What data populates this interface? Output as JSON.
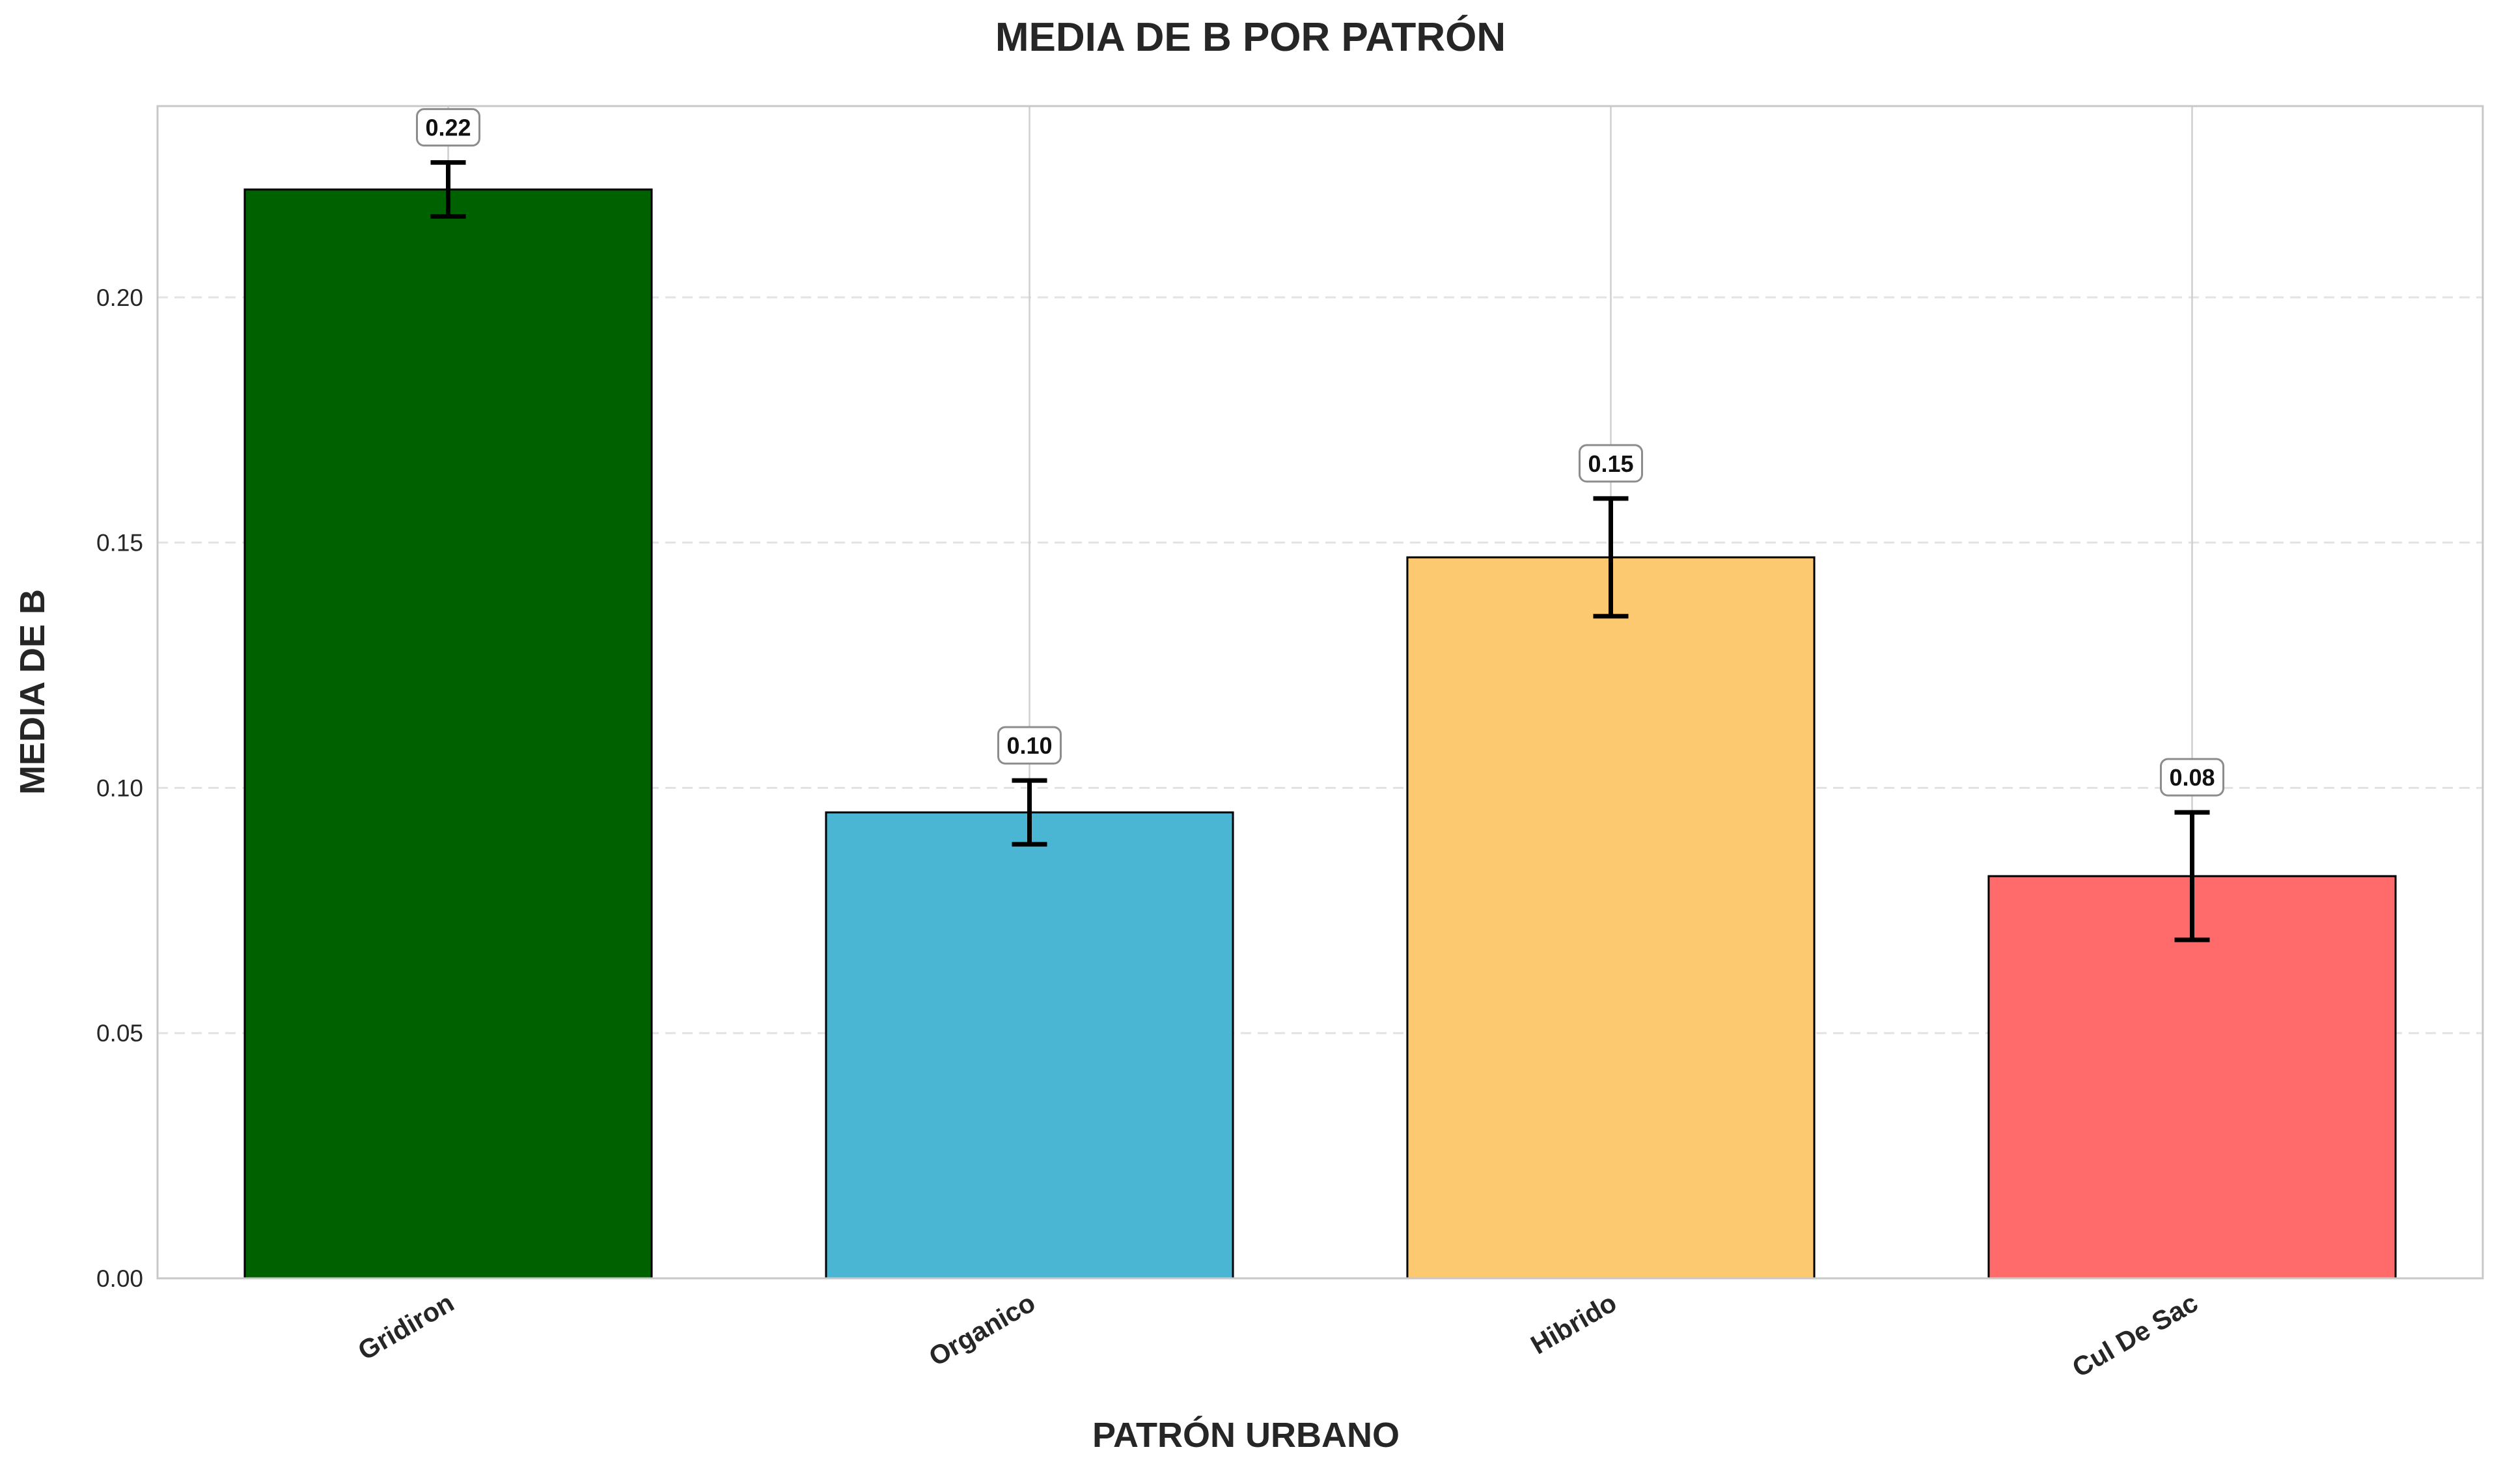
{
  "chart_data": {
    "type": "bar",
    "title": "MEDIA DE B POR PATRÓN",
    "xlabel": "PATRÓN URBANO",
    "ylabel": "MEDIA DE B",
    "categories": [
      "Gridiron",
      "Organico",
      "Hibrido",
      "Cul De Sac"
    ],
    "values": [
      0.222,
      0.095,
      0.147,
      0.082
    ],
    "errors": [
      0.0055,
      0.0065,
      0.012,
      0.013
    ],
    "data_labels": [
      "0.22",
      "0.10",
      "0.15",
      "0.08"
    ],
    "colors": [
      "#006100",
      "#4ab6d3",
      "#fdc970",
      "#ff6b6b"
    ],
    "ylim": [
      0,
      0.239
    ],
    "yticks": [
      0.0,
      0.05,
      0.1,
      0.15,
      0.2
    ],
    "ytick_labels": [
      "0.00",
      "0.05",
      "0.10",
      "0.15",
      "0.20"
    ],
    "grid": "y dashed, x solid",
    "legend": "none"
  }
}
